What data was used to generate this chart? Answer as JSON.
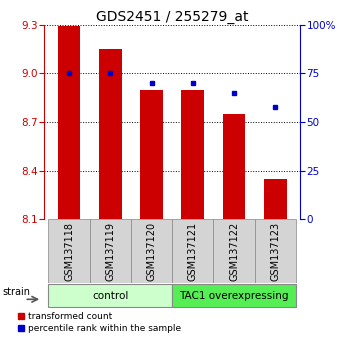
{
  "title": "GDS2451 / 255279_at",
  "samples": [
    "GSM137118",
    "GSM137119",
    "GSM137120",
    "GSM137121",
    "GSM137122",
    "GSM137123"
  ],
  "red_values": [
    9.29,
    9.15,
    8.9,
    8.9,
    8.75,
    8.35
  ],
  "blue_values": [
    75,
    75,
    70,
    70,
    65,
    58
  ],
  "ylim_left": [
    8.1,
    9.3
  ],
  "ylim_right": [
    0,
    100
  ],
  "yticks_left": [
    8.1,
    8.4,
    8.7,
    9.0,
    9.3
  ],
  "yticks_right": [
    0,
    25,
    50,
    75,
    100
  ],
  "bar_color": "#cc0000",
  "dot_color": "#0000cc",
  "bar_bottom": 8.1,
  "groups": [
    {
      "label": "control",
      "indices": [
        0,
        1,
        2
      ],
      "color": "#ccffcc"
    },
    {
      "label": "TAC1 overexpressing",
      "indices": [
        3,
        4,
        5
      ],
      "color": "#55ee55"
    }
  ],
  "legend_red": "transformed count",
  "legend_blue": "percentile rank within the sample",
  "strain_label": "strain",
  "title_fontsize": 10,
  "tick_fontsize": 7.5,
  "sample_fontsize": 7,
  "group_fontsize": 7.5
}
